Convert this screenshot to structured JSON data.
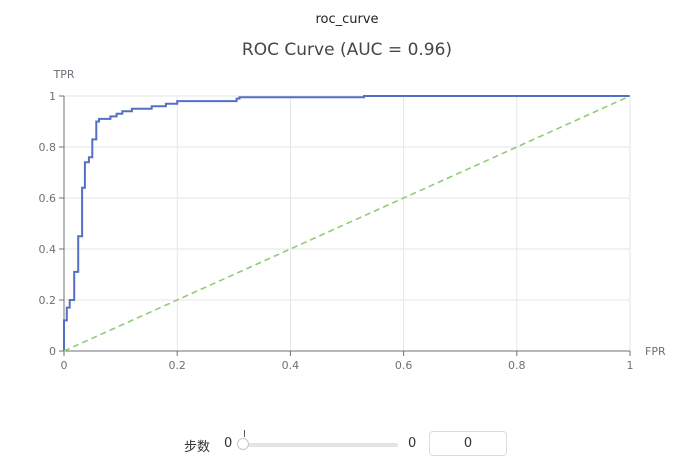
{
  "header": {
    "title": "roc_curve"
  },
  "chart_data": {
    "type": "line",
    "title": "ROC Curve (AUC = 0.96)",
    "xlabel": "FPR",
    "ylabel": "TPR",
    "xlim": [
      0,
      1
    ],
    "ylim": [
      0,
      1
    ],
    "x_ticks": [
      0,
      0.2,
      0.4,
      0.6,
      0.8,
      1
    ],
    "y_ticks": [
      0,
      0.2,
      0.4,
      0.6,
      0.8,
      1
    ],
    "grid": true,
    "series": [
      {
        "color": "#5470c6",
        "style": "solid",
        "steps": [
          [
            0,
            0
          ],
          [
            0,
            0.12
          ],
          [
            0.005,
            0.12
          ],
          [
            0.005,
            0.17
          ],
          [
            0.01,
            0.17
          ],
          [
            0.01,
            0.2
          ],
          [
            0.018,
            0.2
          ],
          [
            0.018,
            0.31
          ],
          [
            0.025,
            0.31
          ],
          [
            0.025,
            0.45
          ],
          [
            0.032,
            0.45
          ],
          [
            0.032,
            0.64
          ],
          [
            0.037,
            0.64
          ],
          [
            0.037,
            0.74
          ],
          [
            0.044,
            0.74
          ],
          [
            0.044,
            0.76
          ],
          [
            0.05,
            0.76
          ],
          [
            0.05,
            0.83
          ],
          [
            0.057,
            0.83
          ],
          [
            0.057,
            0.9
          ],
          [
            0.062,
            0.9
          ],
          [
            0.062,
            0.91
          ],
          [
            0.082,
            0.91
          ],
          [
            0.082,
            0.92
          ],
          [
            0.093,
            0.92
          ],
          [
            0.093,
            0.93
          ],
          [
            0.103,
            0.93
          ],
          [
            0.103,
            0.94
          ],
          [
            0.12,
            0.94
          ],
          [
            0.12,
            0.95
          ],
          [
            0.155,
            0.95
          ],
          [
            0.155,
            0.96
          ],
          [
            0.18,
            0.96
          ],
          [
            0.18,
            0.97
          ],
          [
            0.2,
            0.97
          ],
          [
            0.2,
            0.98
          ],
          [
            0.305,
            0.98
          ],
          [
            0.305,
            0.99
          ],
          [
            0.31,
            0.99
          ],
          [
            0.31,
            0.995
          ],
          [
            0.53,
            0.995
          ],
          [
            0.53,
            1.0
          ],
          [
            1.0,
            1.0
          ]
        ]
      },
      {
        "color": "#91cc75",
        "style": "dashed",
        "points": [
          [
            0,
            0
          ],
          [
            1,
            1
          ]
        ]
      }
    ]
  },
  "slider": {
    "label": "步数",
    "min_label": "0",
    "max_label": "0",
    "value": "0"
  }
}
